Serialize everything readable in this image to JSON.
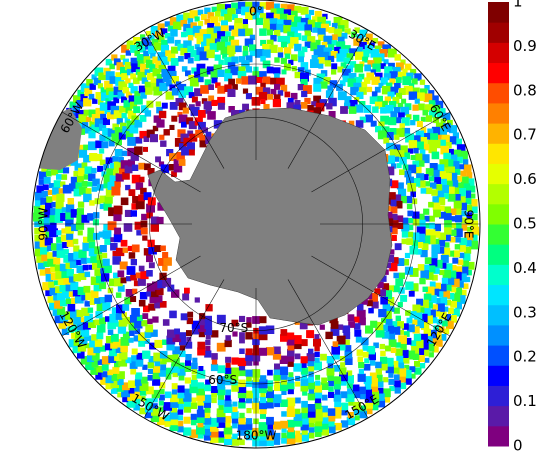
{
  "map": {
    "projection": "south-polar-stereographic",
    "land_color": "#808080",
    "longitude_labels": [
      {
        "lon": 0,
        "text": "0°"
      },
      {
        "lon": 30,
        "text": "30°E"
      },
      {
        "lon": 60,
        "text": "60°E"
      },
      {
        "lon": 90,
        "text": "90°E"
      },
      {
        "lon": 120,
        "text": "120°E"
      },
      {
        "lon": 150,
        "text": "150°E"
      },
      {
        "lon": 180,
        "text": "180°W"
      },
      {
        "lon": -150,
        "text": "150°W"
      },
      {
        "lon": -120,
        "text": "120°W"
      },
      {
        "lon": -90,
        "text": "90°W"
      },
      {
        "lon": -60,
        "text": "60°W"
      },
      {
        "lon": -30,
        "text": "30°W"
      }
    ],
    "latitude_labels": [
      {
        "lat": -70,
        "text": "70°S"
      },
      {
        "lat": -60,
        "text": "60°S"
      }
    ]
  },
  "colorbar": {
    "range": [
      0,
      1
    ],
    "ticks": [
      "0",
      "0.1",
      "0.2",
      "0.3",
      "0.4",
      "0.5",
      "0.6",
      "0.7",
      "0.8",
      "0.9",
      "1"
    ],
    "colors": [
      "#7f007f",
      "#5a1aa8",
      "#2e1fd6",
      "#0000ff",
      "#0050ff",
      "#0090ff",
      "#00bfff",
      "#00e5ff",
      "#00ffcc",
      "#00ff80",
      "#33ff33",
      "#80ff00",
      "#b3ff00",
      "#e6ff00",
      "#ffe600",
      "#ffb300",
      "#ff8000",
      "#ff4d00",
      "#ff0000",
      "#d40000",
      "#a00000",
      "#7f0000"
    ]
  }
}
